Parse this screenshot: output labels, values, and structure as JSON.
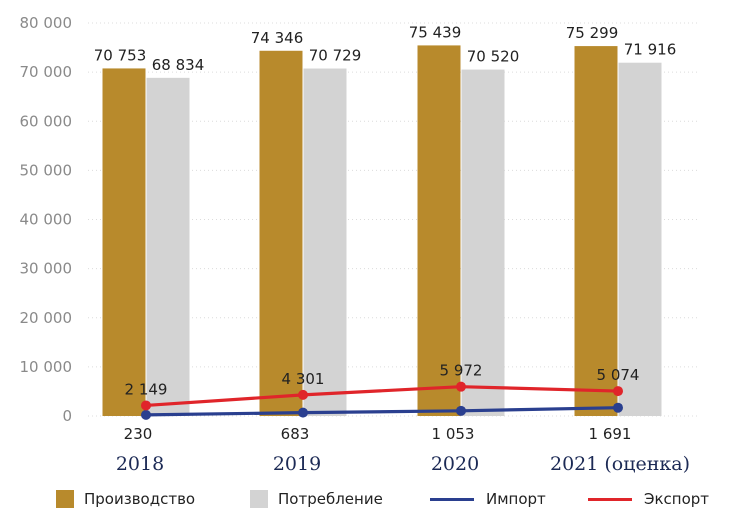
{
  "chart_data": {
    "type": "bar",
    "categories": [
      "2018",
      "2019",
      "2020",
      "2021 (оценка)"
    ],
    "ylim": [
      0,
      80000
    ],
    "yticks": [
      0,
      10000,
      20000,
      30000,
      40000,
      50000,
      60000,
      70000,
      80000
    ],
    "ytick_labels": [
      "0",
      "10 000",
      "20 000",
      "30 000",
      "40 000",
      "50 000",
      "60 000",
      "70 000",
      "80 000"
    ],
    "grid": true,
    "legend_position": "bottom",
    "series": [
      {
        "name": "Производство",
        "kind": "bar",
        "color": "#b88a2c",
        "values": [
          70753,
          74346,
          75439,
          75299
        ],
        "labels": [
          "70 753",
          "74 346",
          "75 439",
          "75 299"
        ]
      },
      {
        "name": "Потребление",
        "kind": "bar",
        "color": "#d3d3d3",
        "values": [
          68834,
          70729,
          70520,
          71916
        ],
        "labels": [
          "68 834",
          "70 729",
          "70 520",
          "71 916"
        ]
      },
      {
        "name": "Импорт",
        "kind": "line",
        "color": "#2a3f8f",
        "values": [
          230,
          683,
          1053,
          1691
        ],
        "labels": [
          "230",
          "683",
          "1 053",
          "1 691"
        ]
      },
      {
        "name": "Экспорт",
        "kind": "line",
        "color": "#e0252a",
        "values": [
          2149,
          4301,
          5972,
          5074
        ],
        "labels": [
          "2 149",
          "4 301",
          "5 972",
          "5 074"
        ]
      }
    ]
  },
  "legend": [
    {
      "label": "Производство",
      "swatch": "box",
      "color": "#b88a2c"
    },
    {
      "label": "Потребление",
      "swatch": "box",
      "color": "#d3d3d3"
    },
    {
      "label": "Импорт",
      "swatch": "line",
      "color": "#2a3f8f"
    },
    {
      "label": "Экспорт",
      "swatch": "line",
      "color": "#e0252a"
    }
  ]
}
